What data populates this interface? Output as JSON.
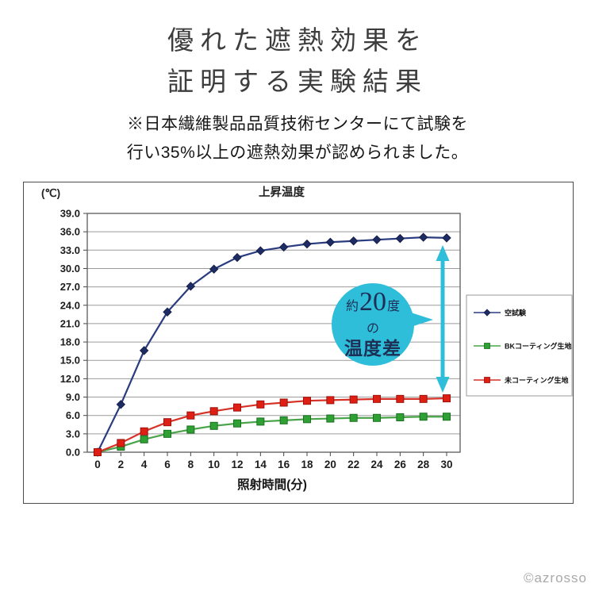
{
  "header": {
    "title_line1": "優れた遮熱効果を",
    "title_line2": "証明する実験結果",
    "note_line1": "※日本繊維製品品質技術センターにて試験を",
    "note_line2": "行い35%以上の遮熱効果が認められました。"
  },
  "annotation": {
    "approx": "約",
    "value": "20",
    "unit": "度",
    "particle": "の",
    "label": "温度差",
    "color": "#2fbeda",
    "text_color": "#1d2f55"
  },
  "footer": {
    "watermark": "©azrosso"
  },
  "chart_data": {
    "type": "line",
    "title": "上昇温度",
    "y_unit_label": "(℃)",
    "xlabel": "照射時間(分)",
    "ylabel": "",
    "grid": true,
    "legend_position": "right",
    "ylim": [
      0,
      39
    ],
    "ytick_step": 3,
    "yticks": [
      "0.0",
      "3.0",
      "6.0",
      "9.0",
      "12.0",
      "15.0",
      "18.0",
      "21.0",
      "24.0",
      "27.0",
      "30.0",
      "33.0",
      "36.0",
      "39.0"
    ],
    "x": [
      0,
      2,
      4,
      6,
      8,
      10,
      12,
      14,
      16,
      18,
      20,
      22,
      24,
      26,
      28,
      30
    ],
    "series": [
      {
        "name": "空試験",
        "marker": "diamond",
        "line": "#2a3c80",
        "fill": "#1e2c63",
        "edge": "#141f4a",
        "values": [
          0.0,
          7.8,
          16.6,
          22.9,
          27.1,
          29.9,
          31.8,
          32.9,
          33.5,
          34.0,
          34.3,
          34.5,
          34.7,
          34.9,
          35.1,
          35.0
        ]
      },
      {
        "name": "BKコーティング生地",
        "marker": "square",
        "line": "#49a449",
        "fill": "#2fa033",
        "edge": "#1a701f",
        "values": [
          0.0,
          0.9,
          2.1,
          3.0,
          3.7,
          4.3,
          4.7,
          5.0,
          5.2,
          5.4,
          5.5,
          5.6,
          5.6,
          5.7,
          5.8,
          5.8
        ]
      },
      {
        "name": "未コーティング生地",
        "marker": "square",
        "line": "#d63126",
        "fill": "#e01f14",
        "edge": "#9c120b",
        "values": [
          0.0,
          1.5,
          3.4,
          4.9,
          6.0,
          6.7,
          7.3,
          7.8,
          8.1,
          8.4,
          8.5,
          8.6,
          8.7,
          8.7,
          8.7,
          8.8
        ]
      }
    ]
  }
}
